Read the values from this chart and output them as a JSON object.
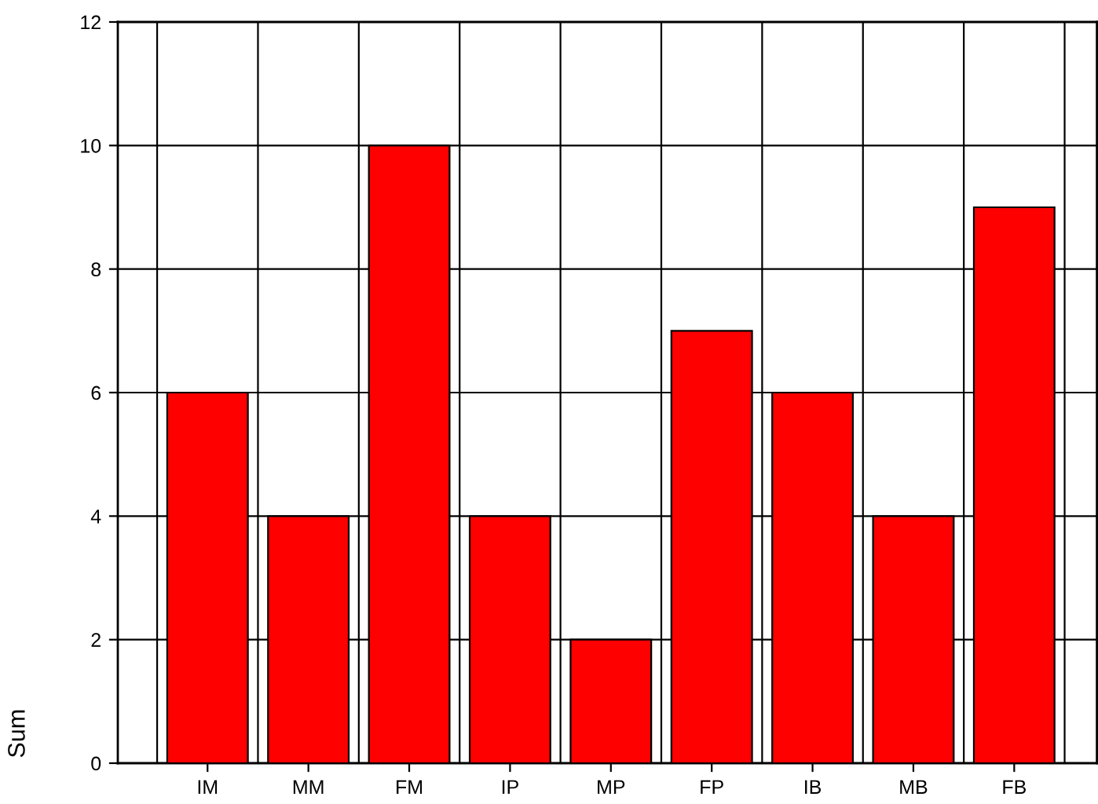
{
  "chart_data": {
    "type": "bar",
    "ylabel": "Sum",
    "categories": [
      "IM",
      "MM",
      "FM",
      "IP",
      "MP",
      "FP",
      "IB",
      "MB",
      "FB"
    ],
    "values": [
      6,
      4,
      10,
      4,
      2,
      7,
      6,
      4,
      9
    ],
    "color": "#ff0000",
    "ylim": [
      0,
      12
    ],
    "yticks": [
      0,
      2,
      4,
      6,
      8,
      10,
      12
    ],
    "grid": true
  }
}
